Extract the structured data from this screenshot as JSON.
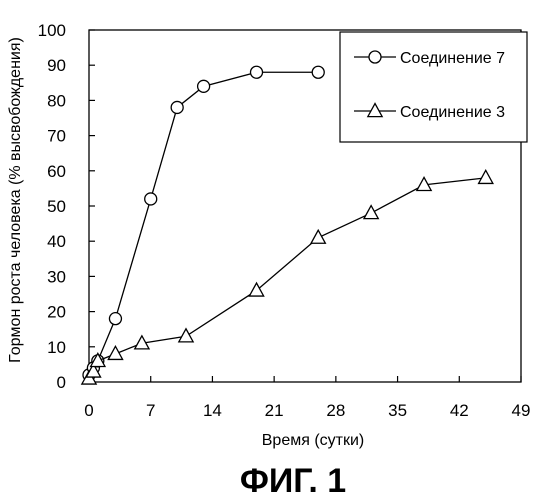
{
  "chart_data": {
    "type": "line",
    "xlabel": "Время (сутки)",
    "ylabel": "Гормон роста человека (% высвобождения)",
    "xlim": [
      0,
      49
    ],
    "ylim": [
      0,
      100
    ],
    "x_ticks": [
      0,
      7,
      14,
      21,
      28,
      35,
      42,
      49
    ],
    "y_ticks": [
      0,
      10,
      20,
      30,
      40,
      50,
      60,
      70,
      80,
      90,
      100
    ],
    "grid": false,
    "legend_position": "top-right",
    "series": [
      {
        "name": "Соединение 7",
        "marker": "circle",
        "x": [
          0,
          0.5,
          1,
          3,
          7,
          10,
          13,
          19,
          26
        ],
        "y": [
          2,
          4,
          6,
          18,
          52,
          78,
          84,
          88,
          88
        ]
      },
      {
        "name": "Соединение 3",
        "marker": "triangle",
        "x": [
          0,
          0.5,
          1,
          3,
          6,
          11,
          19,
          26,
          32,
          38,
          45
        ],
        "y": [
          1,
          3,
          6,
          8,
          11,
          13,
          26,
          41,
          48,
          56,
          58
        ]
      }
    ]
  },
  "caption": "ФИГ. 1"
}
